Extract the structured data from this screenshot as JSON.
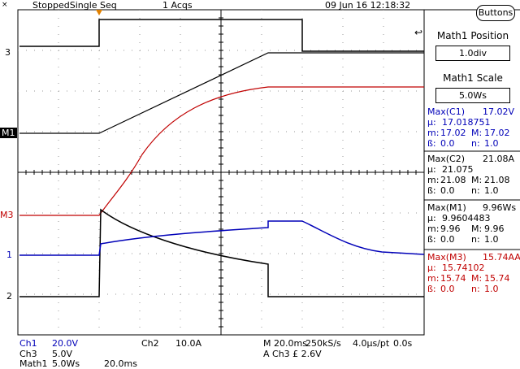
{
  "header": {
    "status": "StoppedSingle Seq",
    "acqs": "1 Acqs",
    "datetime": "09 Jun 16 12:18:32"
  },
  "buttons_label": "Buttons",
  "panel": {
    "position_label": "Math1 Position",
    "position_value": "1.0div",
    "scale_label": "Math1 Scale",
    "scale_value": "5.0Ws"
  },
  "markers": {
    "ch3": "3",
    "m1": "M1",
    "m3": "M3",
    "ch1": "1",
    "ch2": "2"
  },
  "measurements": [
    {
      "name": "Max(C1)",
      "value": "17.02V",
      "mean": "17.018751",
      "min": "17.02",
      "max": "17.02",
      "sd": "0.0",
      "n": "1.0",
      "color": "#0000b8"
    },
    {
      "name": "Max(C2)",
      "value": "21.08A",
      "mean": "21.075",
      "min": "21.08",
      "max": "21.08",
      "sd": "0.0",
      "n": "1.0",
      "color": "#000000"
    },
    {
      "name": "Max(M1)",
      "value": "9.96Ws",
      "mean": "9.9604483",
      "min": "9.96",
      "max": "9.96",
      "sd": "0.0",
      "n": "1.0",
      "color": "#000000"
    },
    {
      "name": "Max(M3)",
      "value": "15.74AAs",
      "mean": "15.74102",
      "min": "15.74",
      "max": "15.74",
      "sd": "0.0",
      "n": "1.0",
      "color": "#c00000"
    }
  ],
  "stat_labels": {
    "mean": "µ:",
    "min": "m:",
    "max": "M:",
    "sd": "ß:",
    "n": "n:"
  },
  "footer": {
    "ch1_name": "Ch1",
    "ch1_scale": "20.0V",
    "ch2_name": "Ch2",
    "ch2_scale": "10.0A",
    "ch3_name": "Ch3",
    "ch3_scale": "5.0V",
    "math1_name": "Math1",
    "math1_scale": "5.0Ws",
    "math1_time": "20.0ms",
    "timebase": "M 20.0ms",
    "samplerate": "250kS/s",
    "resolution": "4.0µs/pt",
    "offset": "0.0s",
    "trigger": "A  Ch3  £  2.6V"
  },
  "colors": {
    "ch1": "#0000b8",
    "ch2": "#000000",
    "ch3": "#000000",
    "m1": "#000000",
    "m3": "#c00000",
    "trigger": "#e08000"
  }
}
